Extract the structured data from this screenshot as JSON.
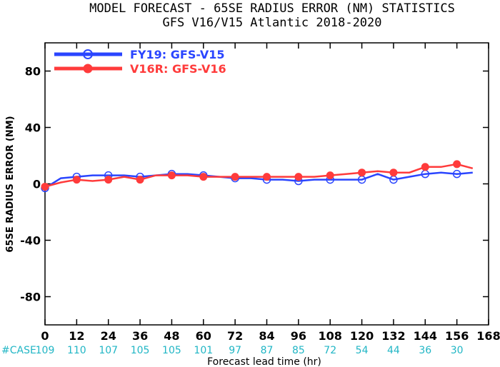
{
  "chart_data": {
    "type": "line",
    "title": "MODEL FORECAST - 65SE RADIUS ERROR (NM) STATISTICS",
    "subtitle": "GFS V16/V15 Atlantic 2018-2020",
    "xlabel": "Forecast lead time (hr)",
    "ylabel": "65SE RADIUS ERROR (NM)",
    "xlim": [
      0,
      168
    ],
    "ylim": [
      -100,
      100
    ],
    "xticks": [
      0,
      12,
      24,
      36,
      48,
      60,
      72,
      84,
      96,
      108,
      120,
      132,
      144,
      156,
      168
    ],
    "yticks": [
      -80,
      -40,
      0,
      40,
      80
    ],
    "grid": false,
    "legend_position": "top-left",
    "cases_label": "#CASE",
    "cases": [
      {
        "x": 0,
        "n": "109"
      },
      {
        "x": 12,
        "n": "110"
      },
      {
        "x": 24,
        "n": "107"
      },
      {
        "x": 36,
        "n": "105"
      },
      {
        "x": 48,
        "n": "105"
      },
      {
        "x": 60,
        "n": "101"
      },
      {
        "x": 72,
        "n": "97"
      },
      {
        "x": 84,
        "n": "87"
      },
      {
        "x": 96,
        "n": "85"
      },
      {
        "x": 108,
        "n": "72"
      },
      {
        "x": 120,
        "n": "54"
      },
      {
        "x": 132,
        "n": "44"
      },
      {
        "x": 144,
        "n": "36"
      },
      {
        "x": 156,
        "n": "30"
      }
    ],
    "series": [
      {
        "name": "FY19: GFS-V15",
        "color": "#2a45ff",
        "marker": "open-circle",
        "x": [
          0,
          6,
          12,
          18,
          24,
          30,
          36,
          42,
          48,
          54,
          60,
          66,
          72,
          78,
          84,
          90,
          96,
          102,
          108,
          114,
          120,
          126,
          132,
          138,
          144,
          150,
          156,
          162
        ],
        "y": [
          -3,
          4,
          5,
          6,
          6,
          6,
          5,
          6,
          7,
          7,
          6,
          5,
          4,
          4,
          3,
          3,
          2,
          3,
          3,
          3,
          3,
          7,
          3,
          5,
          7,
          8,
          7,
          8
        ],
        "marker_x": [
          0,
          12,
          24,
          36,
          48,
          60,
          72,
          84,
          96,
          108,
          120,
          132,
          144,
          156
        ]
      },
      {
        "name": "V16R: GFS-V16",
        "color": "#ff3b3b",
        "marker": "filled-circle",
        "x": [
          0,
          6,
          12,
          18,
          24,
          30,
          36,
          42,
          48,
          54,
          60,
          66,
          72,
          78,
          84,
          90,
          96,
          102,
          108,
          114,
          120,
          126,
          132,
          138,
          144,
          150,
          156,
          162
        ],
        "y": [
          -2,
          1,
          3,
          2,
          3,
          5,
          3,
          6,
          6,
          6,
          5,
          5,
          5,
          5,
          5,
          5,
          5,
          5,
          6,
          7,
          8,
          9,
          8,
          8,
          12,
          12,
          14,
          11
        ],
        "marker_x": [
          0,
          12,
          24,
          36,
          48,
          60,
          72,
          84,
          96,
          108,
          120,
          132,
          144,
          156
        ]
      }
    ]
  }
}
